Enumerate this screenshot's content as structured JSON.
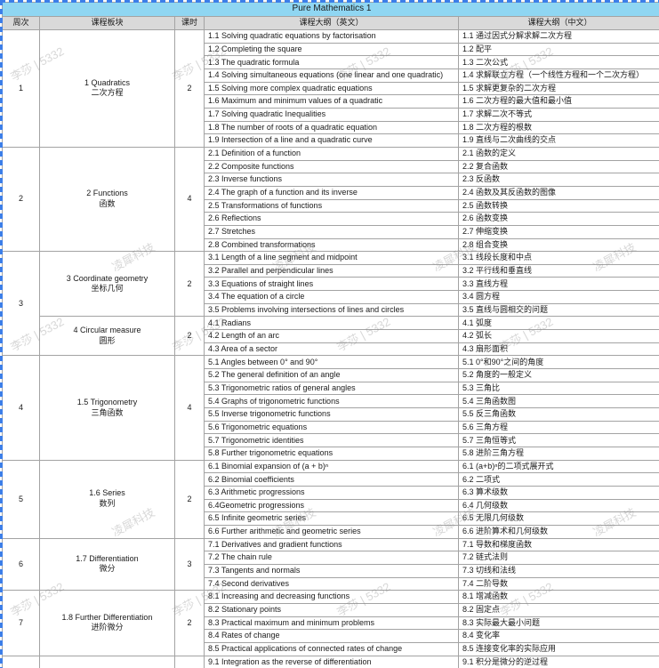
{
  "title": "Pure Mathematics 1",
  "columns": {
    "week": "周次",
    "module": "课程板块",
    "hours": "课时",
    "syllabus_en": "课程大纲（英文）",
    "syllabus_zh": "课程大纲（中文）"
  },
  "watermarks": {
    "a": "李莎 | 5332",
    "b": "凌犀科技"
  },
  "colors": {
    "title_bg": "#8fd6f2",
    "header_bg": "#d9d9d9",
    "grid_line": "#a3a3a3",
    "selection_ants": "#3c7ee8"
  },
  "weeks": [
    {
      "week": "1",
      "modules": [
        {
          "name_en": "1 Quadratics",
          "name_zh": "二次方程",
          "hours": "2",
          "rows": [
            {
              "en": "1.1 Solving quadratic equations by factorisation",
              "zh": "1.1 通过因式分解求解二次方程"
            },
            {
              "en": "1.2 Completing the square",
              "zh": "1.2 配平"
            },
            {
              "en": "1.3 The quadratic formula",
              "zh": "1.3 二次公式"
            },
            {
              "en": "1.4 Solving simultaneous equations (one linear and one quadratic)",
              "zh": "1.4 求解联立方程（一个线性方程和一个二次方程）"
            },
            {
              "en": "1.5 Solving more complex quadratic equations",
              "zh": "1.5 求解更复杂的二次方程"
            },
            {
              "en": "1.6 Maximum and minimum values of a quadratic",
              "zh": "1.6 二次方程的最大值和最小值"
            },
            {
              "en": "1.7 Solving quadratic Inequalities",
              "zh": "1.7 求解二次不等式"
            },
            {
              "en": "1.8 The number of roots of a quadratic equation",
              "zh": "1.8 二次方程的根数"
            },
            {
              "en": "1.9 Intersection of a line and a quadratic curve",
              "zh": "1.9 直线与二次曲线的交点"
            }
          ]
        }
      ]
    },
    {
      "week": "2",
      "modules": [
        {
          "name_en": "2 Functions",
          "name_zh": "函数",
          "hours": "4",
          "rows": [
            {
              "en": "2.1 Definition of a function",
              "zh": "2.1 函数的定义"
            },
            {
              "en": "2.2 Composite functions",
              "zh": "2.2 复合函数"
            },
            {
              "en": "2.3 Inverse functions",
              "zh": "2.3 反函数"
            },
            {
              "en": "2.4 The graph of a function and its inverse",
              "zh": "2.4 函数及其反函数的图像"
            },
            {
              "en": "2.5 Transformations of functions",
              "zh": "2.5 函数转换"
            },
            {
              "en": "2.6 Reflections",
              "zh": "2.6 函数变换"
            },
            {
              "en": "2.7 Stretches",
              "zh": "2.7 伸缩变换"
            },
            {
              "en": "2.8 Combined transformations",
              "zh": "2.8 组合变换"
            }
          ]
        }
      ]
    },
    {
      "week": "3",
      "modules": [
        {
          "name_en": "3 Coordinate geometry",
          "name_zh": "坐标几何",
          "hours": "2",
          "rows": [
            {
              "en": "3.1 Length of a line segment and midpoint",
              "zh": "3.1 线段长度和中点"
            },
            {
              "en": "3.2 Parallel and perpendicular lines",
              "zh": "3.2 平行线和垂直线"
            },
            {
              "en": "3.3 Equations of straight lines",
              "zh": "3.3 直线方程"
            },
            {
              "en": "3.4 The equation of a circle",
              "zh": "3.4 圆方程"
            },
            {
              "en": "3.5 Problems involving intersections of lines and circles",
              "zh": "3.5 直线与圆相交的问题"
            }
          ]
        },
        {
          "name_en": "4 Circular measure",
          "name_zh": "圆形",
          "hours": "2",
          "rows": [
            {
              "en": "4.1 Radians",
              "zh": "4.1 弧度"
            },
            {
              "en": "4.2 Length of an arc",
              "zh": "4.2 弧长"
            },
            {
              "en": "4.3 Area of a sector",
              "zh": "4.3 扇形面积"
            }
          ]
        }
      ]
    },
    {
      "week": "4",
      "modules": [
        {
          "name_en": "1.5 Trigonometry",
          "name_zh": "三角函数",
          "hours": "4",
          "rows": [
            {
              "en": "5.1 Angles between 0° and 90°",
              "zh": "5.1 0°和90°之间的角度"
            },
            {
              "en": "5.2 The general definition of an angle",
              "zh": "5.2 角度的一般定义"
            },
            {
              "en": "5.3 Trigonometric ratios of general angles",
              "zh": "5.3 三角比"
            },
            {
              "en": "5.4 Graphs of trigonometric functions",
              "zh": "5.4 三角函数图"
            },
            {
              "en": "5.5 Inverse trigonometric functions",
              "zh": "5.5 反三角函数"
            },
            {
              "en": "5.6 Trigonometric equations",
              "zh": "5.6 三角方程"
            },
            {
              "en": "5.7 Trigonometric identities",
              "zh": "5.7 三角恒等式"
            },
            {
              "en": "5.8 Further trigonometric equations",
              "zh": "5.8 进阶三角方程"
            }
          ]
        }
      ]
    },
    {
      "week": "5",
      "modules": [
        {
          "name_en": "1.6 Series",
          "name_zh": "数列",
          "hours": "2",
          "rows": [
            {
              "en": "6.1 Binomial expansion of (a + b)ⁿ",
              "zh": "6.1 (a+b)ⁿ的二项式展开式"
            },
            {
              "en": "6.2 Binomial coefficients",
              "zh": "6.2 二项式"
            },
            {
              "en": "6.3 Arithmetic progressions",
              "zh": "6.3 算术级数"
            },
            {
              "en": "6.4Geometric progressions",
              "zh": "6.4 几何级数"
            },
            {
              "en": "6.5 Infinite geometric series",
              "zh": "6.5 无限几何级数"
            },
            {
              "en": "6.6 Further arithmetic and geometric series",
              "zh": "6.6 进阶算术和几何级数"
            }
          ]
        }
      ]
    },
    {
      "week": "6",
      "modules": [
        {
          "name_en": "1.7 Differentiation",
          "name_zh": "微分",
          "hours": "3",
          "rows": [
            {
              "en": "7.1 Derivatives and gradient functions",
              "zh": "7.1 导数和梯度函数"
            },
            {
              "en": "7.2 The chain rule",
              "zh": "7.2 链式法则"
            },
            {
              "en": "7.3 Tangents and normals",
              "zh": "7.3 切线和法线"
            },
            {
              "en": "7.4 Second derivatives",
              "zh": "7.4 二阶导数"
            }
          ]
        }
      ]
    },
    {
      "week": "7",
      "modules": [
        {
          "name_en": "1.8 Further Differentiation",
          "name_zh": "进阶微分",
          "hours": "2",
          "rows": [
            {
              "en": "8.1 Increasing and decreasing functions",
              "zh": "8.1 增减函数"
            },
            {
              "en": "8.2 Stationary points",
              "zh": "8.2 固定点"
            },
            {
              "en": "8.3 Practical maximum and minimum problems",
              "zh": "8.3 实际最大最小问题"
            },
            {
              "en": "8.4 Rates of change",
              "zh": "8.4 变化率"
            },
            {
              "en": "8.5 Practical applications of connected rates of change",
              "zh": "8.5 连接变化率的实际应用"
            }
          ]
        }
      ]
    },
    {
      "week": "",
      "modules": [
        {
          "name_en": "",
          "name_zh": "",
          "hours": "",
          "rows": [
            {
              "en": "9.1 Integration as the reverse of differentiation",
              "zh": "9.1 积分是微分的逆过程"
            }
          ]
        }
      ]
    }
  ]
}
